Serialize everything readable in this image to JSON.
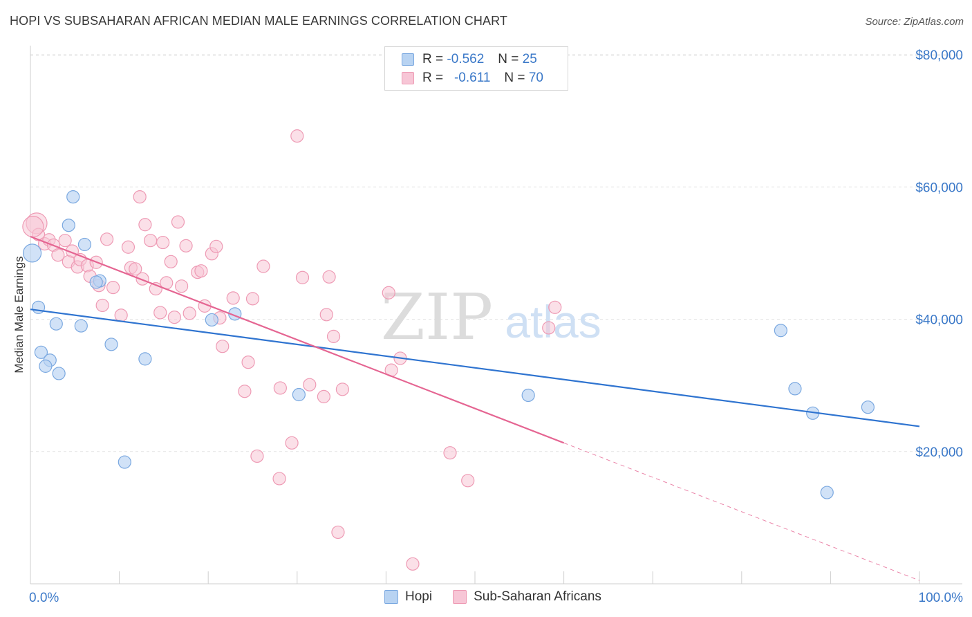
{
  "title": "HOPI VS SUBSAHARAN AFRICAN MEDIAN MALE EARNINGS CORRELATION CHART",
  "source": "Source: ZipAtlas.com",
  "watermark": {
    "zip": "ZIP",
    "atlas": "atlas"
  },
  "legend": {
    "hopi": {
      "r_label": "R =",
      "r_value": "-0.562",
      "n_label": "N =",
      "n_value": "25"
    },
    "ssa": {
      "r_label": "R =",
      "r_value": "-0.611",
      "n_label": "N =",
      "n_value": "70"
    }
  },
  "bottom_legend": {
    "hopi": "Hopi",
    "ssa": "Sub-Saharan Africans"
  },
  "colors": {
    "hopi_fill": "#b8d3f2",
    "hopi_stroke": "#7aa8e0",
    "hopi_line": "#2f74d0",
    "ssa_fill": "#f7c6d6",
    "ssa_stroke": "#ee9ab4",
    "ssa_line": "#e56592",
    "axis_text": "#3a78c8",
    "grid": "#e4e4e4"
  },
  "chart_data": {
    "type": "scatter",
    "title": "HOPI VS SUBSAHARAN AFRICAN MEDIAN MALE EARNINGS CORRELATION CHART",
    "xlabel": "",
    "ylabel": "Median Male Earnings",
    "xlim": [
      0,
      100
    ],
    "ylim": [
      0,
      83000
    ],
    "x_tick_labels": [
      "0.0%",
      "100.0%"
    ],
    "y_ticks": [
      20000,
      40000,
      60000,
      80000
    ],
    "y_tick_labels": [
      "$20,000",
      "$40,000",
      "$60,000",
      "$80,000"
    ],
    "grid": true,
    "legend_position": "top-center",
    "series": [
      {
        "name": "Hopi",
        "points": [
          [
            0.2,
            50000
          ],
          [
            0.9,
            41800
          ],
          [
            2.9,
            39300
          ],
          [
            1.2,
            35000
          ],
          [
            2.2,
            33800
          ],
          [
            1.7,
            32900
          ],
          [
            3.2,
            31800
          ],
          [
            4.8,
            58500
          ],
          [
            4.3,
            54200
          ],
          [
            6.1,
            51300
          ],
          [
            5.7,
            39000
          ],
          [
            7.8,
            45800
          ],
          [
            7.4,
            45600
          ],
          [
            9.1,
            36200
          ],
          [
            10.6,
            18400
          ],
          [
            12.9,
            34000
          ],
          [
            20.4,
            39900
          ],
          [
            23.0,
            40800
          ],
          [
            30.2,
            28600
          ],
          [
            56.0,
            28500
          ],
          [
            84.4,
            38300
          ],
          [
            86.0,
            29500
          ],
          [
            88.0,
            25800
          ],
          [
            89.6,
            13800
          ],
          [
            94.2,
            26700
          ]
        ],
        "trend": {
          "x": [
            0,
            100
          ],
          "y": [
            41500,
            23800
          ]
        }
      },
      {
        "name": "Sub-Saharan Africans",
        "points": [
          [
            0.7,
            54500
          ],
          [
            0.9,
            52800
          ],
          [
            1.6,
            51400
          ],
          [
            2.1,
            52000
          ],
          [
            2.6,
            51200
          ],
          [
            3.1,
            49700
          ],
          [
            3.9,
            51900
          ],
          [
            4.3,
            48700
          ],
          [
            4.7,
            50300
          ],
          [
            5.3,
            47900
          ],
          [
            5.6,
            49000
          ],
          [
            6.4,
            48100
          ],
          [
            6.7,
            46500
          ],
          [
            7.4,
            48600
          ],
          [
            7.7,
            45100
          ],
          [
            8.1,
            42100
          ],
          [
            8.6,
            52100
          ],
          [
            9.3,
            44800
          ],
          [
            10.2,
            40600
          ],
          [
            11.3,
            47800
          ],
          [
            11.0,
            50900
          ],
          [
            11.8,
            47600
          ],
          [
            12.3,
            58500
          ],
          [
            12.6,
            46100
          ],
          [
            12.9,
            54300
          ],
          [
            13.5,
            51900
          ],
          [
            14.1,
            44600
          ],
          [
            14.6,
            41000
          ],
          [
            14.9,
            51600
          ],
          [
            15.3,
            45500
          ],
          [
            15.8,
            48700
          ],
          [
            16.2,
            40300
          ],
          [
            16.6,
            54700
          ],
          [
            17.0,
            45000
          ],
          [
            17.5,
            51100
          ],
          [
            17.9,
            40900
          ],
          [
            18.8,
            47100
          ],
          [
            19.2,
            47300
          ],
          [
            19.6,
            42000
          ],
          [
            20.4,
            49900
          ],
          [
            20.9,
            51000
          ],
          [
            21.3,
            40200
          ],
          [
            21.6,
            35900
          ],
          [
            22.8,
            43200
          ],
          [
            24.1,
            29100
          ],
          [
            24.5,
            33500
          ],
          [
            25.0,
            43100
          ],
          [
            25.5,
            19300
          ],
          [
            26.2,
            48000
          ],
          [
            28.0,
            15900
          ],
          [
            28.1,
            29600
          ],
          [
            29.4,
            21300
          ],
          [
            30.0,
            67700
          ],
          [
            30.6,
            46300
          ],
          [
            31.4,
            30100
          ],
          [
            33.0,
            28300
          ],
          [
            33.3,
            40700
          ],
          [
            33.6,
            46400
          ],
          [
            34.1,
            37400
          ],
          [
            34.6,
            7800
          ],
          [
            35.1,
            29400
          ],
          [
            40.3,
            44000
          ],
          [
            40.6,
            32300
          ],
          [
            41.6,
            34100
          ],
          [
            43.0,
            3000
          ],
          [
            47.2,
            19800
          ],
          [
            49.2,
            15600
          ],
          [
            58.3,
            38700
          ],
          [
            59.0,
            41800
          ],
          [
            0.3,
            54000
          ]
        ],
        "trend": {
          "x": [
            0,
            60
          ],
          "y": [
            52500,
            21300
          ]
        },
        "trend_dashed": {
          "x": [
            60,
            100
          ],
          "y": [
            21300,
            500
          ]
        }
      }
    ]
  }
}
